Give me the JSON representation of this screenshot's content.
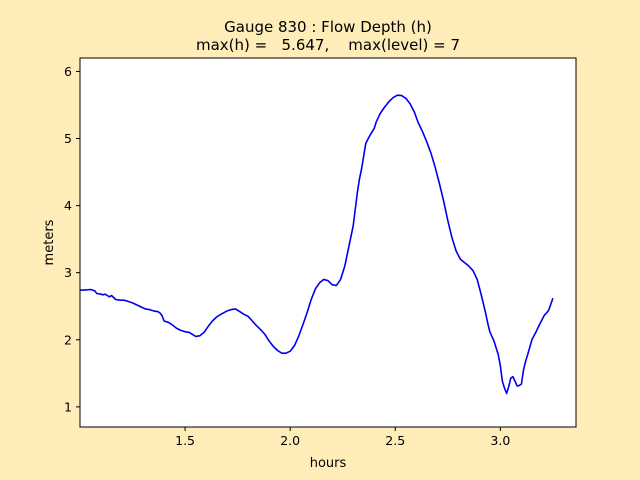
{
  "figure": {
    "background": "#ffedb9",
    "plot_background": "#ffffff",
    "line_color": "#0000ee"
  },
  "chart_data": {
    "type": "line",
    "title": "Gauge 830 : Flow Depth (h)",
    "subtitle": "max(h) =   5.647,    max(level) = 7",
    "xlabel": "hours",
    "ylabel": "meters",
    "xlim": [
      1.0,
      3.36
    ],
    "ylim": [
      0.7,
      6.2
    ],
    "xticks": [
      1.5,
      2.0,
      2.5,
      3.0
    ],
    "xtick_labels": [
      "1.5",
      "2.0",
      "2.5",
      "3.0"
    ],
    "yticks": [
      1,
      2,
      3,
      4,
      5,
      6
    ],
    "ytick_labels": [
      "1",
      "2",
      "3",
      "4",
      "5",
      "6"
    ],
    "grid": false,
    "series": [
      {
        "color": "#0000ee",
        "x": [
          1.0,
          1.02,
          1.05,
          1.07,
          1.08,
          1.1,
          1.11,
          1.12,
          1.13,
          1.14,
          1.15,
          1.17,
          1.19,
          1.21,
          1.23,
          1.25,
          1.27,
          1.29,
          1.31,
          1.33,
          1.35,
          1.37,
          1.38,
          1.39,
          1.4,
          1.42,
          1.44,
          1.46,
          1.48,
          1.5,
          1.52,
          1.54,
          1.55,
          1.57,
          1.59,
          1.61,
          1.63,
          1.65,
          1.67,
          1.7,
          1.72,
          1.74,
          1.76,
          1.78,
          1.8,
          1.82,
          1.84,
          1.86,
          1.88,
          1.9,
          1.92,
          1.94,
          1.96,
          1.98,
          2.0,
          2.02,
          2.04,
          2.06,
          2.08,
          2.1,
          2.12,
          2.14,
          2.16,
          2.18,
          2.2,
          2.22,
          2.24,
          2.26,
          2.28,
          2.3,
          2.32,
          2.33,
          2.34,
          2.36,
          2.38,
          2.4,
          2.41,
          2.43,
          2.45,
          2.47,
          2.49,
          2.51,
          2.53,
          2.55,
          2.57,
          2.59,
          2.61,
          2.63,
          2.65,
          2.67,
          2.69,
          2.71,
          2.73,
          2.75,
          2.77,
          2.79,
          2.81,
          2.83,
          2.85,
          2.87,
          2.89,
          2.91,
          2.93,
          2.94,
          2.95,
          2.97,
          2.99,
          3.0,
          3.01,
          3.02,
          3.03,
          3.04,
          3.05,
          3.06,
          3.07,
          3.08,
          3.09,
          3.1,
          3.11,
          3.12,
          3.13,
          3.15,
          3.17,
          3.19,
          3.21,
          3.22,
          3.23,
          3.24,
          3.25
        ],
        "y": [
          2.74,
          2.74,
          2.75,
          2.73,
          2.69,
          2.68,
          2.67,
          2.68,
          2.66,
          2.64,
          2.66,
          2.6,
          2.59,
          2.59,
          2.57,
          2.55,
          2.52,
          2.49,
          2.46,
          2.45,
          2.43,
          2.42,
          2.4,
          2.36,
          2.28,
          2.26,
          2.22,
          2.17,
          2.14,
          2.12,
          2.11,
          2.07,
          2.05,
          2.06,
          2.11,
          2.2,
          2.28,
          2.34,
          2.38,
          2.43,
          2.45,
          2.46,
          2.42,
          2.38,
          2.35,
          2.28,
          2.21,
          2.15,
          2.08,
          1.98,
          1.9,
          1.84,
          1.8,
          1.8,
          1.83,
          1.91,
          2.05,
          2.22,
          2.4,
          2.6,
          2.76,
          2.85,
          2.9,
          2.88,
          2.82,
          2.81,
          2.9,
          3.1,
          3.4,
          3.7,
          4.2,
          4.4,
          4.55,
          4.93,
          5.05,
          5.15,
          5.25,
          5.38,
          5.47,
          5.55,
          5.61,
          5.645,
          5.64,
          5.6,
          5.52,
          5.4,
          5.23,
          5.1,
          4.95,
          4.78,
          4.57,
          4.33,
          4.07,
          3.78,
          3.52,
          3.32,
          3.2,
          3.15,
          3.1,
          3.03,
          2.9,
          2.66,
          2.4,
          2.25,
          2.12,
          1.98,
          1.78,
          1.62,
          1.38,
          1.28,
          1.2,
          1.3,
          1.43,
          1.45,
          1.38,
          1.31,
          1.32,
          1.34,
          1.55,
          1.68,
          1.78,
          2.0,
          2.12,
          2.25,
          2.37,
          2.4,
          2.44,
          2.53,
          2.62
        ]
      }
    ]
  }
}
